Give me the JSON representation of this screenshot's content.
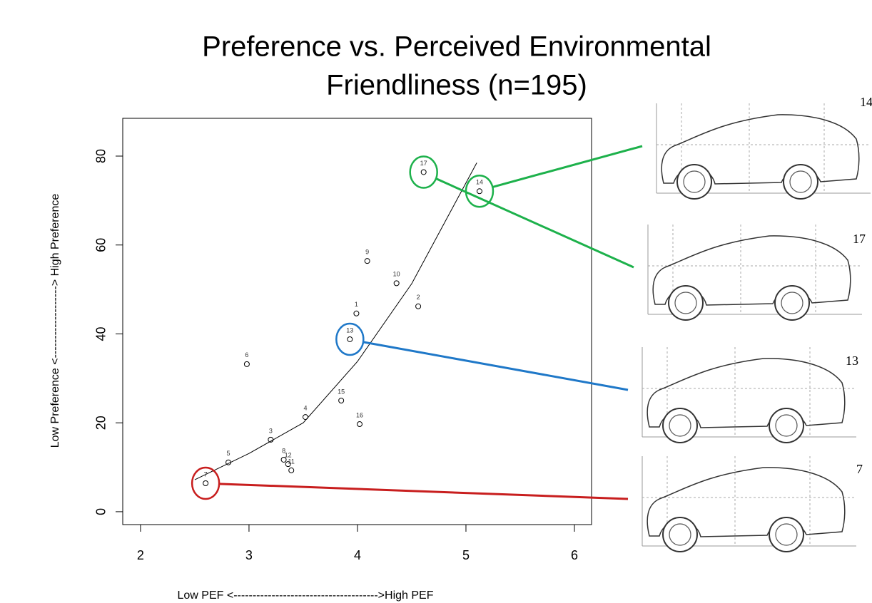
{
  "chart_data": {
    "type": "scatter",
    "title": [
      "Preference vs. Perceived Environmental",
      "Friendliness (n=195)"
    ],
    "x_label": "Low PEF <-------------------------------------->High PEF",
    "y_label": "Low Preference <-------------------> High Preference",
    "point_labels": [
      "1",
      "2",
      "3",
      "4",
      "5",
      "6",
      "7",
      "8",
      "9",
      "10",
      "11",
      "12",
      "13",
      "14",
      "15",
      "16",
      "17"
    ],
    "x": [
      3.99,
      4.56,
      3.2,
      3.52,
      2.81,
      2.98,
      2.6,
      3.32,
      4.09,
      4.36,
      3.39,
      3.36,
      3.93,
      5.125,
      3.85,
      4.02,
      4.61
    ],
    "values": [
      44.6,
      46.2,
      16.2,
      21.3,
      11.1,
      33.2,
      6.4,
      11.7,
      56.4,
      51.4,
      9.3,
      10.7,
      38.8,
      72.1,
      25.0,
      19.7,
      76.4
    ],
    "color": "#000000",
    "fit": {
      "x": [
        2.5,
        3,
        3.5,
        4,
        4.5,
        5.1
      ],
      "y": [
        7.2,
        13.1,
        20,
        33.8,
        51.3,
        78.5
      ]
    },
    "xlim": [
      1.836,
      6.158
    ],
    "ylim": [
      -2.9,
      88.5
    ],
    "xticks": [
      2,
      3,
      4,
      5,
      6
    ],
    "yticks": [
      0,
      20,
      40,
      60,
      80
    ],
    "callouts": [
      {
        "label": "14",
        "color": "#1db14b"
      },
      {
        "label": "17",
        "color": "#1db14b"
      },
      {
        "label": "13",
        "color": "#1f78c8"
      },
      {
        "label": "7",
        "color": "#c81e1e"
      }
    ]
  }
}
